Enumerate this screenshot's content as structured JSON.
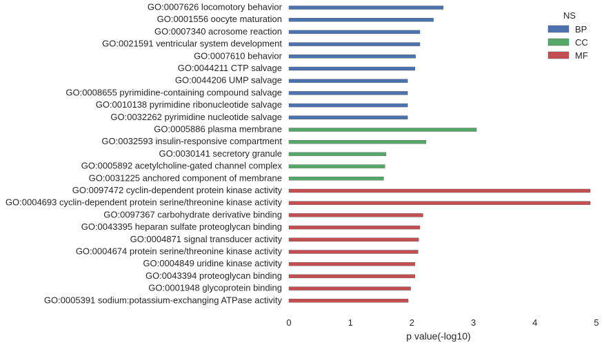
{
  "chart_data": {
    "type": "bar",
    "orientation": "horizontal",
    "title": "",
    "xlabel": "p value(-log10)",
    "ylabel": "",
    "xlim": [
      0,
      4.9
    ],
    "xticks": [
      0,
      1,
      2,
      3,
      4,
      5
    ],
    "grid": false,
    "legend": {
      "title": "NS",
      "placement": "top-right",
      "entries": [
        {
          "name": "BP",
          "color": "#4c72b0"
        },
        {
          "name": "CC",
          "color": "#55a868"
        },
        {
          "name": "MF",
          "color": "#c44e52"
        }
      ]
    },
    "categories": [
      "GO:0007626 locomotory behavior",
      "GO:0001556 oocyte maturation",
      "GO:0007340 acrosome reaction",
      "GO:0021591 ventricular system development",
      "GO:0007610 behavior",
      "GO:0044211 CTP salvage",
      "GO:0044206 UMP salvage",
      "GO:0008655 pyrimidine-containing compound salvage",
      "GO:0010138 pyrimidine ribonucleotide salvage",
      "GO:0032262 pyrimidine nucleotide salvage",
      "GO:0005886 plasma membrane",
      "GO:0032593 insulin-responsive compartment",
      "GO:0030141 secretory granule",
      "GO:0005892 acetylcholine-gated channel complex",
      "GO:0031225 anchored component of membrane",
      "GO:0097472 cyclin-dependent protein kinase activity",
      "GO:0004693 cyclin-dependent protein serine/threonine kinase activity",
      "GO:0097367 carbohydrate derivative binding",
      "GO:0043395 heparan sulfate proteoglycan binding",
      "GO:0004871 signal transducer activity",
      "GO:0004674 protein serine/threonine kinase activity",
      "GO:0004849 uridine kinase activity",
      "GO:0043394 proteoglycan binding",
      "GO:0001948 glycoprotein binding",
      "GO:0005391 sodium:potassium-exchanging ATPase activity"
    ],
    "ns": [
      "BP",
      "BP",
      "BP",
      "BP",
      "BP",
      "BP",
      "BP",
      "BP",
      "BP",
      "BP",
      "CC",
      "CC",
      "CC",
      "CC",
      "CC",
      "MF",
      "MF",
      "MF",
      "MF",
      "MF",
      "MF",
      "MF",
      "MF",
      "MF",
      "MF"
    ],
    "values": [
      2.51,
      2.35,
      2.13,
      2.13,
      2.06,
      2.05,
      1.93,
      1.93,
      1.93,
      1.93,
      3.05,
      2.23,
      1.58,
      1.56,
      1.54,
      4.9,
      4.9,
      2.18,
      2.13,
      2.11,
      2.1,
      2.05,
      2.05,
      1.98,
      1.94
    ]
  }
}
